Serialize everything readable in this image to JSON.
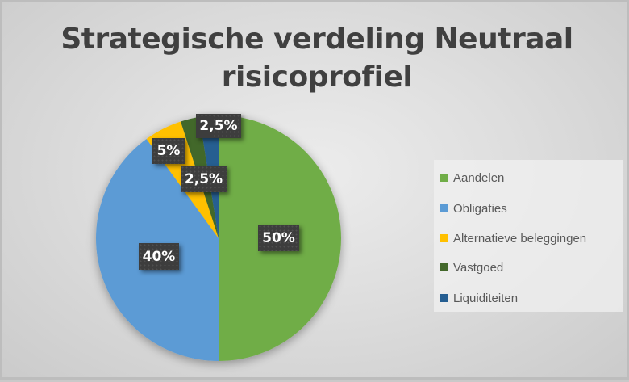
{
  "chart_data": {
    "type": "pie",
    "title": "Strategische verdeling Neutraal risicoprofiel",
    "title_lines": [
      "Strategische verdeling Neutraal",
      "risicoprofiel"
    ],
    "categories": [
      "Aandelen",
      "Obligaties",
      "Alternatieve beleggingen",
      "Vastgoed",
      "Liquiditeiten"
    ],
    "values": [
      50,
      40,
      5,
      2.5,
      2.5
    ],
    "data_labels": [
      "50%",
      "40%",
      "5%",
      "2,5%",
      "2,5%"
    ],
    "colors": [
      "#70AD47",
      "#5B9BD5",
      "#FFC000",
      "#43682B",
      "#255E91"
    ],
    "start_angle": 0,
    "direction": "clockwise",
    "legend_position": "right",
    "xlabel": "",
    "ylabel": ""
  },
  "legend": {
    "items": [
      {
        "label": "Aandelen",
        "color": "#70AD47"
      },
      {
        "label": "Obligaties",
        "color": "#5B9BD5"
      },
      {
        "label": "Alternatieve beleggingen",
        "color": "#FFC000"
      },
      {
        "label": "Vastgoed",
        "color": "#43682B"
      },
      {
        "label": "Liquiditeiten",
        "color": "#255E91"
      }
    ]
  }
}
